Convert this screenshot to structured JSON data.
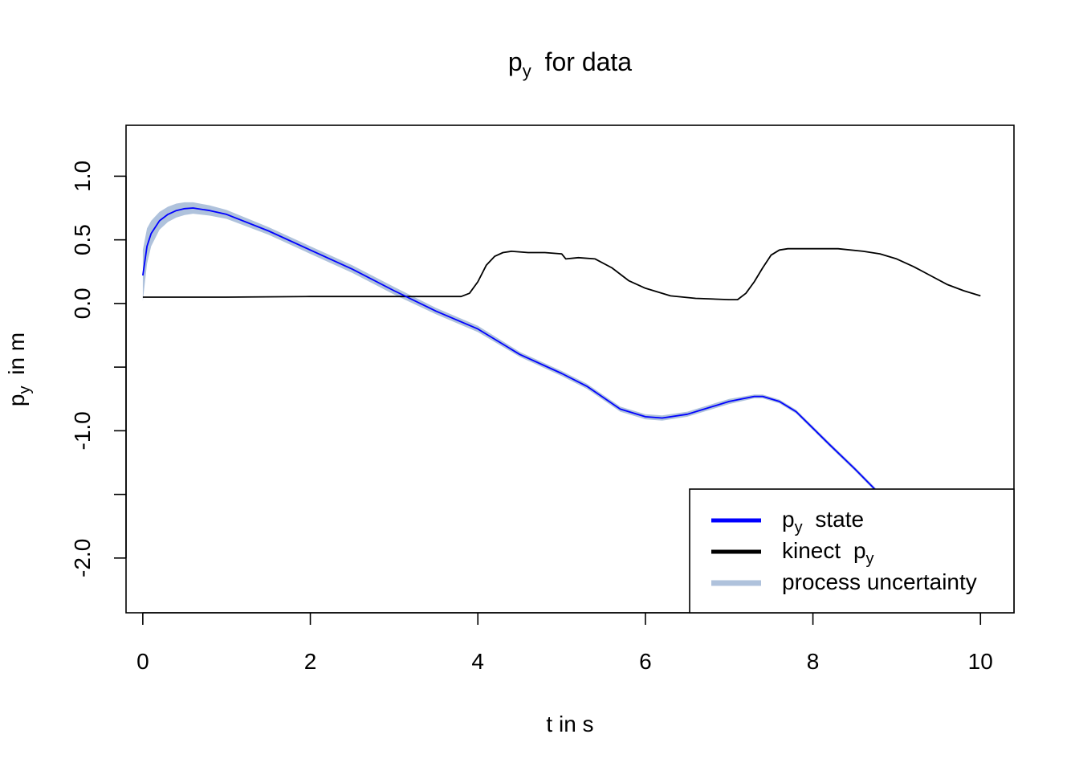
{
  "chart_data": {
    "type": "line",
    "title": {
      "main": "p",
      "sub": "y",
      "rest": "for data"
    },
    "xlabel": "t in s",
    "ylabel": {
      "main": "p",
      "sub": "y",
      "rest": "in m"
    },
    "xlim": [
      -0.2,
      10.4
    ],
    "ylim": [
      -2.43,
      1.4
    ],
    "x_ticks": [
      0,
      2,
      4,
      6,
      8,
      10
    ],
    "x_tick_labels": [
      "0",
      "2",
      "4",
      "6",
      "8",
      "10"
    ],
    "y_ticks": [
      1.0,
      0.5,
      0.0,
      -0.5,
      -1.0,
      -1.5,
      -2.0
    ],
    "y_tick_labels": [
      "1.0",
      "0.5",
      "0.0",
      "",
      "-1.0",
      "",
      "-2.0"
    ],
    "legend": {
      "position": "bottom-right",
      "entries": [
        {
          "main": "p",
          "sub": "y",
          "rest": "state",
          "color": "#0000ff"
        },
        {
          "main": "kinect",
          "sub": "",
          "rest": "p",
          "sub2": "y",
          "color": "#000000"
        },
        {
          "main": "process uncertainty",
          "sub": "",
          "rest": "",
          "color": "#afc2dc"
        }
      ]
    },
    "series": [
      {
        "name": "p_y state",
        "color": "#0000ff",
        "x": [
          0.0,
          0.05,
          0.1,
          0.2,
          0.3,
          0.4,
          0.5,
          0.6,
          0.8,
          1.0,
          1.5,
          2.0,
          2.5,
          3.0,
          3.5,
          4.0,
          4.5,
          5.0,
          5.3,
          5.7,
          6.0,
          6.2,
          6.5,
          7.0,
          7.3,
          7.4,
          7.6,
          7.8,
          8.0,
          8.2,
          8.5,
          8.8
        ],
        "y": [
          0.22,
          0.45,
          0.55,
          0.65,
          0.7,
          0.73,
          0.745,
          0.75,
          0.73,
          0.7,
          0.57,
          0.42,
          0.27,
          0.1,
          -0.06,
          -0.2,
          -0.4,
          -0.55,
          -0.65,
          -0.83,
          -0.89,
          -0.9,
          -0.87,
          -0.77,
          -0.73,
          -0.73,
          -0.77,
          -0.85,
          -0.98,
          -1.11,
          -1.3,
          -1.5
        ]
      },
      {
        "name": "kinect p_y",
        "color": "#000000",
        "x": [
          0.0,
          0.5,
          1.0,
          2.0,
          3.0,
          3.8,
          3.9,
          4.0,
          4.1,
          4.2,
          4.3,
          4.4,
          4.6,
          4.8,
          5.0,
          5.05,
          5.2,
          5.4,
          5.6,
          5.8,
          6.0,
          6.3,
          6.6,
          7.0,
          7.1,
          7.2,
          7.3,
          7.4,
          7.5,
          7.6,
          7.7,
          8.0,
          8.3,
          8.6,
          8.8,
          9.0,
          9.2,
          9.4,
          9.6,
          9.8,
          10.0
        ],
        "y": [
          0.05,
          0.05,
          0.05,
          0.055,
          0.055,
          0.055,
          0.08,
          0.17,
          0.3,
          0.37,
          0.4,
          0.41,
          0.4,
          0.4,
          0.39,
          0.35,
          0.36,
          0.35,
          0.28,
          0.18,
          0.12,
          0.06,
          0.04,
          0.03,
          0.03,
          0.08,
          0.17,
          0.28,
          0.38,
          0.42,
          0.43,
          0.43,
          0.43,
          0.41,
          0.39,
          0.35,
          0.29,
          0.22,
          0.15,
          0.1,
          0.06
        ]
      },
      {
        "name": "process uncertainty",
        "color": "#afc2dc",
        "x": [
          0.0,
          0.05,
          0.1,
          0.2,
          0.3,
          0.4,
          0.5,
          0.6,
          0.8,
          1.0,
          1.5,
          2.0,
          2.5,
          3.0,
          3.5,
          4.0,
          4.5,
          5.0,
          5.3,
          5.7,
          6.0,
          6.2,
          6.5,
          7.0,
          7.3,
          7.4,
          7.6,
          7.8,
          8.0,
          8.2,
          8.5,
          8.8
        ],
        "half_width": [
          0.2,
          0.14,
          0.1,
          0.07,
          0.06,
          0.055,
          0.05,
          0.045,
          0.04,
          0.035,
          0.03,
          0.03,
          0.03,
          0.03,
          0.025,
          0.025,
          0.02,
          0.02,
          0.02,
          0.02,
          0.02,
          0.02,
          0.02,
          0.02,
          0.015,
          0.015,
          0.015,
          0.015,
          0.015,
          0.015,
          0.015,
          0.015
        ]
      }
    ]
  }
}
